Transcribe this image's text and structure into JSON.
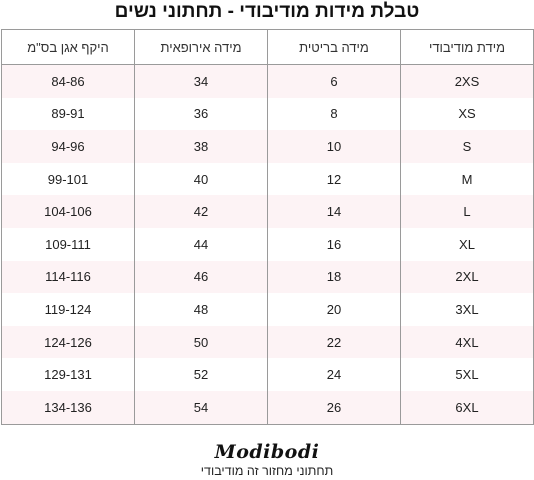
{
  "title": "טבלת מידות מודיבודי - תחתוני נשים",
  "table": {
    "headers": [
      "מידת מודיבודי",
      "מידה בריטית",
      "מידה אירופאית",
      "היקף אגן בס\"מ"
    ],
    "rows": [
      [
        "2XS",
        "6",
        "34",
        "84-86"
      ],
      [
        "XS",
        "8",
        "36",
        "89-91"
      ],
      [
        "S",
        "10",
        "38",
        "94-96"
      ],
      [
        "M",
        "12",
        "40",
        "99-101"
      ],
      [
        "L",
        "14",
        "42",
        "104-106"
      ],
      [
        "XL",
        "16",
        "44",
        "109-111"
      ],
      [
        "2XL",
        "18",
        "46",
        "114-116"
      ],
      [
        "3XL",
        "20",
        "48",
        "119-124"
      ],
      [
        "4XL",
        "22",
        "50",
        "124-126"
      ],
      [
        "5XL",
        "24",
        "52",
        "129-131"
      ],
      [
        "6XL",
        "26",
        "54",
        "134-136"
      ]
    ]
  },
  "brand": {
    "logo_text": "Modibodi",
    "tagline": "תחתוני מחזור זה מודיבודי"
  },
  "colors": {
    "row_band": "#fdf3f5",
    "border": "#9a9a9a"
  }
}
